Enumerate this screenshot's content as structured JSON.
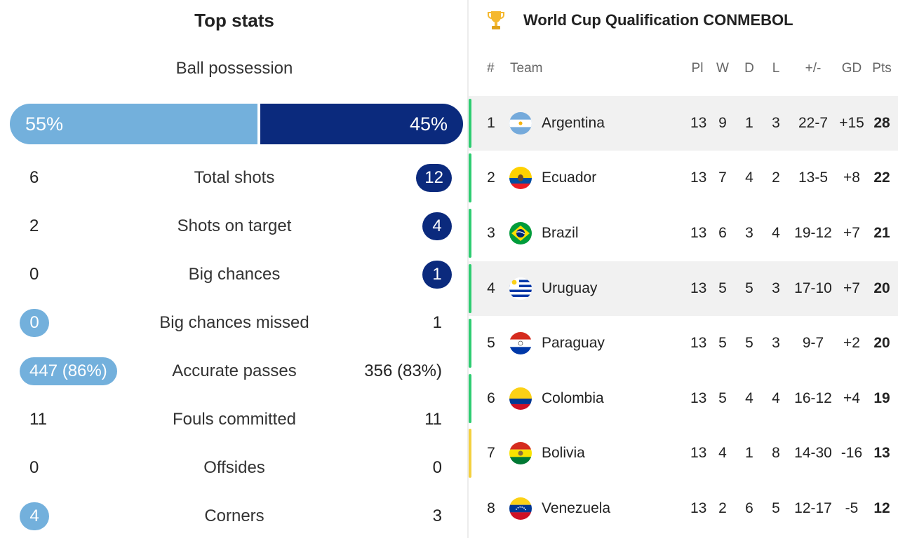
{
  "stats": {
    "title": "Top stats",
    "possession": {
      "label": "Ball possession",
      "home": "55%",
      "away": "45%",
      "home_fraction": 0.55
    },
    "rows": [
      {
        "label": "Total shots",
        "home": "6",
        "away": "12",
        "highlight": "away"
      },
      {
        "label": "Shots on target",
        "home": "2",
        "away": "4",
        "highlight": "away"
      },
      {
        "label": "Big chances",
        "home": "0",
        "away": "1",
        "highlight": "away"
      },
      {
        "label": "Big chances missed",
        "home": "0",
        "away": "1",
        "highlight": "home"
      },
      {
        "label": "Accurate passes",
        "home": "447 (86%)",
        "away": "356 (83%)",
        "highlight": "home"
      },
      {
        "label": "Fouls committed",
        "home": "11",
        "away": "11",
        "highlight": "none"
      },
      {
        "label": "Offsides",
        "home": "0",
        "away": "0",
        "highlight": "none"
      },
      {
        "label": "Corners",
        "home": "4",
        "away": "3",
        "highlight": "home"
      }
    ]
  },
  "standings": {
    "title": "World Cup Qualification CONMEBOL",
    "trophy_icon": "trophy-icon",
    "headers": {
      "pos": "#",
      "team": "Team",
      "pl": "Pl",
      "w": "W",
      "d": "D",
      "l": "L",
      "goals": "+/-",
      "gd": "GD",
      "pts": "Pts"
    },
    "rows": [
      {
        "pos": "1",
        "team": "Argentina",
        "pl": "13",
        "w": "9",
        "d": "1",
        "l": "3",
        "goals": "22-7",
        "gd": "+15",
        "pts": "28",
        "zone": "qualified",
        "highlight": true
      },
      {
        "pos": "2",
        "team": "Ecuador",
        "pl": "13",
        "w": "7",
        "d": "4",
        "l": "2",
        "goals": "13-5",
        "gd": "+8",
        "pts": "22",
        "zone": "qualified",
        "highlight": false
      },
      {
        "pos": "3",
        "team": "Brazil",
        "pl": "13",
        "w": "6",
        "d": "3",
        "l": "4",
        "goals": "19-12",
        "gd": "+7",
        "pts": "21",
        "zone": "qualified",
        "highlight": false
      },
      {
        "pos": "4",
        "team": "Uruguay",
        "pl": "13",
        "w": "5",
        "d": "5",
        "l": "3",
        "goals": "17-10",
        "gd": "+7",
        "pts": "20",
        "zone": "qualified",
        "highlight": true
      },
      {
        "pos": "5",
        "team": "Paraguay",
        "pl": "13",
        "w": "5",
        "d": "5",
        "l": "3",
        "goals": "9-7",
        "gd": "+2",
        "pts": "20",
        "zone": "qualified",
        "highlight": false
      },
      {
        "pos": "6",
        "team": "Colombia",
        "pl": "13",
        "w": "5",
        "d": "4",
        "l": "4",
        "goals": "16-12",
        "gd": "+4",
        "pts": "19",
        "zone": "qualified",
        "highlight": false
      },
      {
        "pos": "7",
        "team": "Bolivia",
        "pl": "13",
        "w": "4",
        "d": "1",
        "l": "8",
        "goals": "14-30",
        "gd": "-16",
        "pts": "13",
        "zone": "playoff",
        "highlight": false
      },
      {
        "pos": "8",
        "team": "Venezuela",
        "pl": "13",
        "w": "2",
        "d": "6",
        "l": "5",
        "goals": "12-17",
        "gd": "-5",
        "pts": "12",
        "zone": "none",
        "highlight": false
      }
    ]
  },
  "colors": {
    "home": "#73b0dc",
    "away": "#0b2a7d",
    "qualified": "#2ecc71",
    "playoff": "#f4d03f"
  }
}
